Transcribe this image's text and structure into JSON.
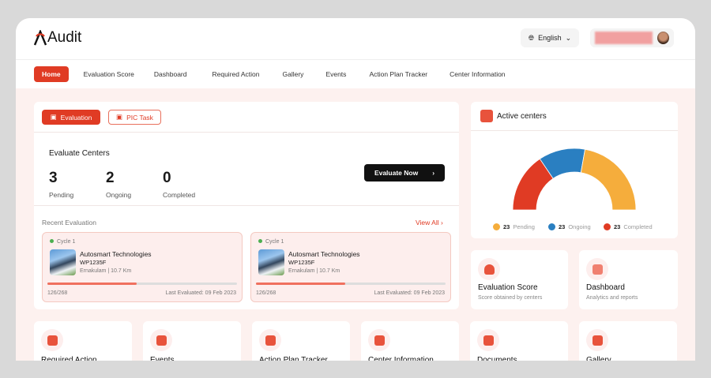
{
  "app": {
    "logo_text": "Audit"
  },
  "header": {
    "language": "English"
  },
  "nav": [
    "Home",
    "Evaluation Score",
    "Dashboard",
    "Required Action",
    "Gallery",
    "Events",
    "Action Plan Tracker",
    "Center Information"
  ],
  "tabs": {
    "evaluation": "Evaluation",
    "pic_task": "PIC Task"
  },
  "evaluate": {
    "title": "Evaluate Centers",
    "stats": [
      {
        "n": "3",
        "l": "Pending"
      },
      {
        "n": "2",
        "l": "Ongoing"
      },
      {
        "n": "0",
        "l": "Completed"
      }
    ],
    "button": "Evaluate Now"
  },
  "recent": {
    "title": "Recent Evaluation",
    "view_all": "View All",
    "items": [
      {
        "cycle": "Cycle 1",
        "name": "Autosmart Technologies",
        "code": "WP1235F",
        "location": "Ernakulam | 10.7 Km",
        "progress": "126/268",
        "progress_value": 0.47,
        "last": "Last Evaluated: 09 Feb 2023"
      },
      {
        "cycle": "Cycle 1",
        "name": "Autosmart Technologies",
        "code": "WP1235F",
        "location": "Ernakulam | 10.7 Km",
        "progress": "126/268",
        "progress_value": 0.47,
        "last": "Last Evaluated: 09 Feb 2023"
      }
    ]
  },
  "active": {
    "title": "Active centers",
    "legend": [
      {
        "n": "23",
        "l": "Pending",
        "color": "#f5ad3c"
      },
      {
        "n": "23",
        "l": "Ongoing",
        "color": "#2a7fc1"
      },
      {
        "n": "23",
        "l": "Completed",
        "color": "#e03b24"
      }
    ]
  },
  "tiles": [
    {
      "t": "Evaluation Score",
      "s": "Score obtained by centers"
    },
    {
      "t": "Dashboard",
      "s": "Analytics and reports"
    }
  ],
  "bottom_tiles": [
    "Required Action",
    "Events",
    "Action Plan Tracker",
    "Center Information",
    "Documents",
    "Gallery"
  ],
  "colors": {
    "accent": "#e03b24"
  }
}
